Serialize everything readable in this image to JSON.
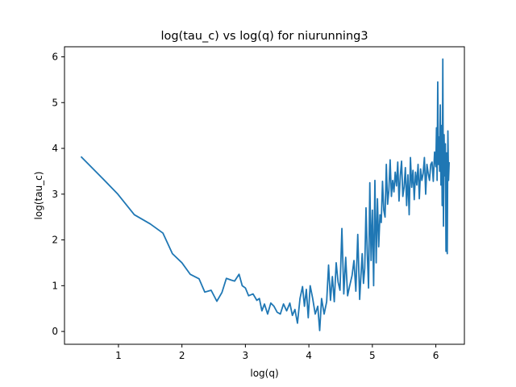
{
  "chart_data": {
    "type": "line",
    "title": "log(tau_c) vs log(q) for niurunning3",
    "xlabel": "log(q)",
    "ylabel": "log(tau_c)",
    "xlim": [
      0.15,
      6.45
    ],
    "ylim": [
      -0.28,
      6.22
    ],
    "xticks": [
      1,
      2,
      3,
      4,
      5,
      6
    ],
    "yticks": [
      0,
      1,
      2,
      3,
      4,
      5,
      6
    ],
    "grid": false,
    "legend": "none",
    "series": [
      {
        "color": "#1f77b4",
        "x": [
          0.41,
          0.71,
          0.99,
          1.25,
          1.5,
          1.7,
          1.85,
          2.0,
          2.13,
          2.27,
          2.36,
          2.46,
          2.55,
          2.63,
          2.7,
          2.78,
          2.83,
          2.9,
          2.95,
          3.0,
          3.05,
          3.12,
          3.18,
          3.22,
          3.26,
          3.3,
          3.35,
          3.4,
          3.45,
          3.5,
          3.55,
          3.6,
          3.65,
          3.7,
          3.74,
          3.78,
          3.82,
          3.86,
          3.9,
          3.93,
          3.96,
          3.99,
          4.02,
          4.06,
          4.1,
          4.14,
          4.17,
          4.2,
          4.24,
          4.28,
          4.31,
          4.34,
          4.37,
          4.4,
          4.43,
          4.46,
          4.49,
          4.52,
          4.55,
          4.58,
          4.61,
          4.64,
          4.68,
          4.71,
          4.74,
          4.77,
          4.8,
          4.82,
          4.84,
          4.86,
          4.88,
          4.9,
          4.92,
          4.94,
          4.96,
          4.98,
          5.0,
          5.02,
          5.04,
          5.06,
          5.08,
          5.1,
          5.12,
          5.14,
          5.16,
          5.18,
          5.2,
          5.22,
          5.24,
          5.26,
          5.28,
          5.3,
          5.32,
          5.34,
          5.36,
          5.38,
          5.4,
          5.42,
          5.44,
          5.46,
          5.48,
          5.5,
          5.52,
          5.54,
          5.56,
          5.58,
          5.6,
          5.62,
          5.64,
          5.66,
          5.68,
          5.7,
          5.72,
          5.74,
          5.76,
          5.78,
          5.8,
          5.82,
          5.84,
          5.86,
          5.88,
          5.9,
          5.92,
          5.94,
          5.96,
          5.98,
          6.0,
          6.01,
          6.02,
          6.03,
          6.04,
          6.05,
          6.06,
          6.07,
          6.08,
          6.09,
          6.1,
          6.11,
          6.12,
          6.13,
          6.14,
          6.15,
          6.16,
          6.17,
          6.18,
          6.19,
          6.2,
          6.21
        ],
        "y": [
          3.82,
          3.4,
          3.0,
          2.55,
          2.35,
          2.15,
          1.7,
          1.5,
          1.25,
          1.15,
          0.86,
          0.9,
          0.66,
          0.85,
          1.16,
          1.12,
          1.1,
          1.25,
          1.0,
          0.95,
          0.78,
          0.82,
          0.68,
          0.72,
          0.45,
          0.6,
          0.38,
          0.62,
          0.55,
          0.42,
          0.38,
          0.6,
          0.45,
          0.62,
          0.35,
          0.48,
          0.18,
          0.72,
          0.98,
          0.55,
          0.92,
          0.3,
          1.0,
          0.72,
          0.38,
          0.55,
          0.02,
          0.72,
          0.38,
          0.65,
          1.45,
          0.68,
          1.2,
          0.65,
          1.5,
          1.08,
          0.9,
          2.25,
          0.82,
          1.62,
          0.78,
          0.98,
          1.22,
          1.55,
          0.88,
          2.12,
          0.7,
          1.22,
          1.7,
          1.05,
          1.38,
          2.7,
          1.7,
          0.95,
          3.25,
          1.55,
          2.65,
          1.0,
          3.3,
          1.5,
          2.9,
          1.85,
          2.55,
          2.38,
          3.28,
          2.65,
          2.5,
          3.65,
          2.78,
          3.08,
          3.75,
          2.95,
          3.3,
          3.05,
          3.48,
          3.18,
          3.7,
          2.85,
          3.4,
          3.72,
          2.95,
          3.15,
          3.58,
          2.75,
          3.42,
          2.55,
          3.8,
          3.15,
          3.52,
          2.88,
          3.48,
          3.2,
          3.65,
          2.9,
          3.55,
          3.3,
          3.45,
          3.8,
          3.0,
          3.65,
          3.45,
          3.3,
          3.65,
          3.7,
          3.28,
          3.92,
          3.6,
          4.45,
          3.3,
          5.45,
          3.65,
          4.25,
          3.5,
          4.95,
          3.2,
          4.5,
          2.75,
          5.95,
          2.3,
          4.3,
          3.4,
          4.1,
          1.75,
          3.9,
          1.7,
          4.38,
          3.3,
          3.7
        ]
      }
    ]
  }
}
